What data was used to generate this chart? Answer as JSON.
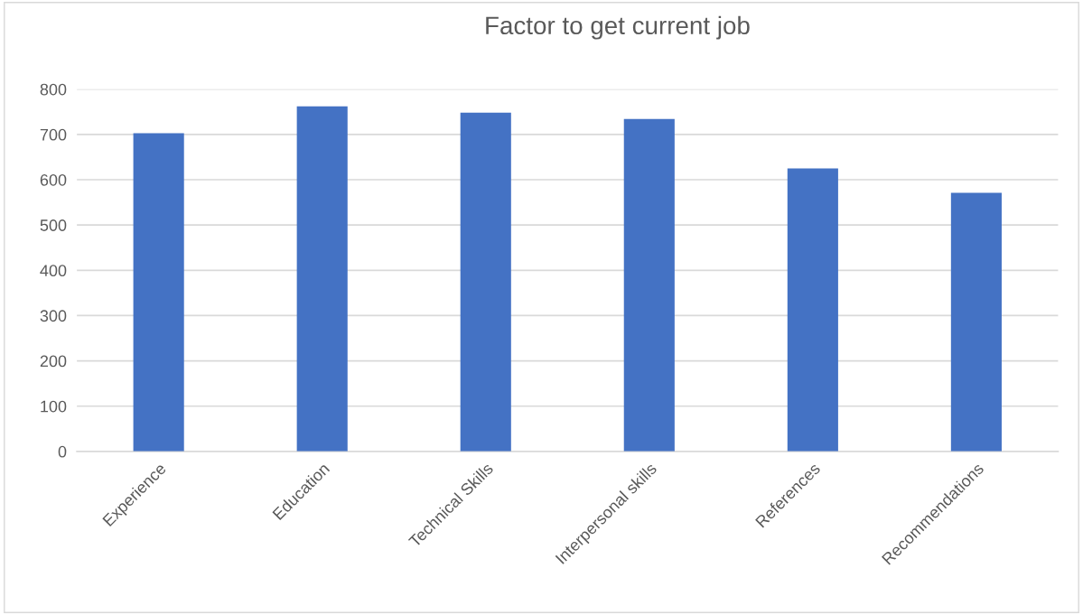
{
  "chart_data": {
    "type": "bar",
    "title": "Factor to get current job",
    "categories": [
      "Experience",
      "Education",
      "Technical Skills",
      "Interpersonal skills",
      "References",
      "Recommendations"
    ],
    "values": [
      703,
      762,
      748,
      734,
      625,
      571
    ],
    "color": "#4472c4",
    "ylim": [
      0,
      800
    ],
    "yticks": [
      0,
      100,
      200,
      300,
      400,
      500,
      600,
      700,
      800
    ],
    "grid": "y",
    "legend": false
  }
}
